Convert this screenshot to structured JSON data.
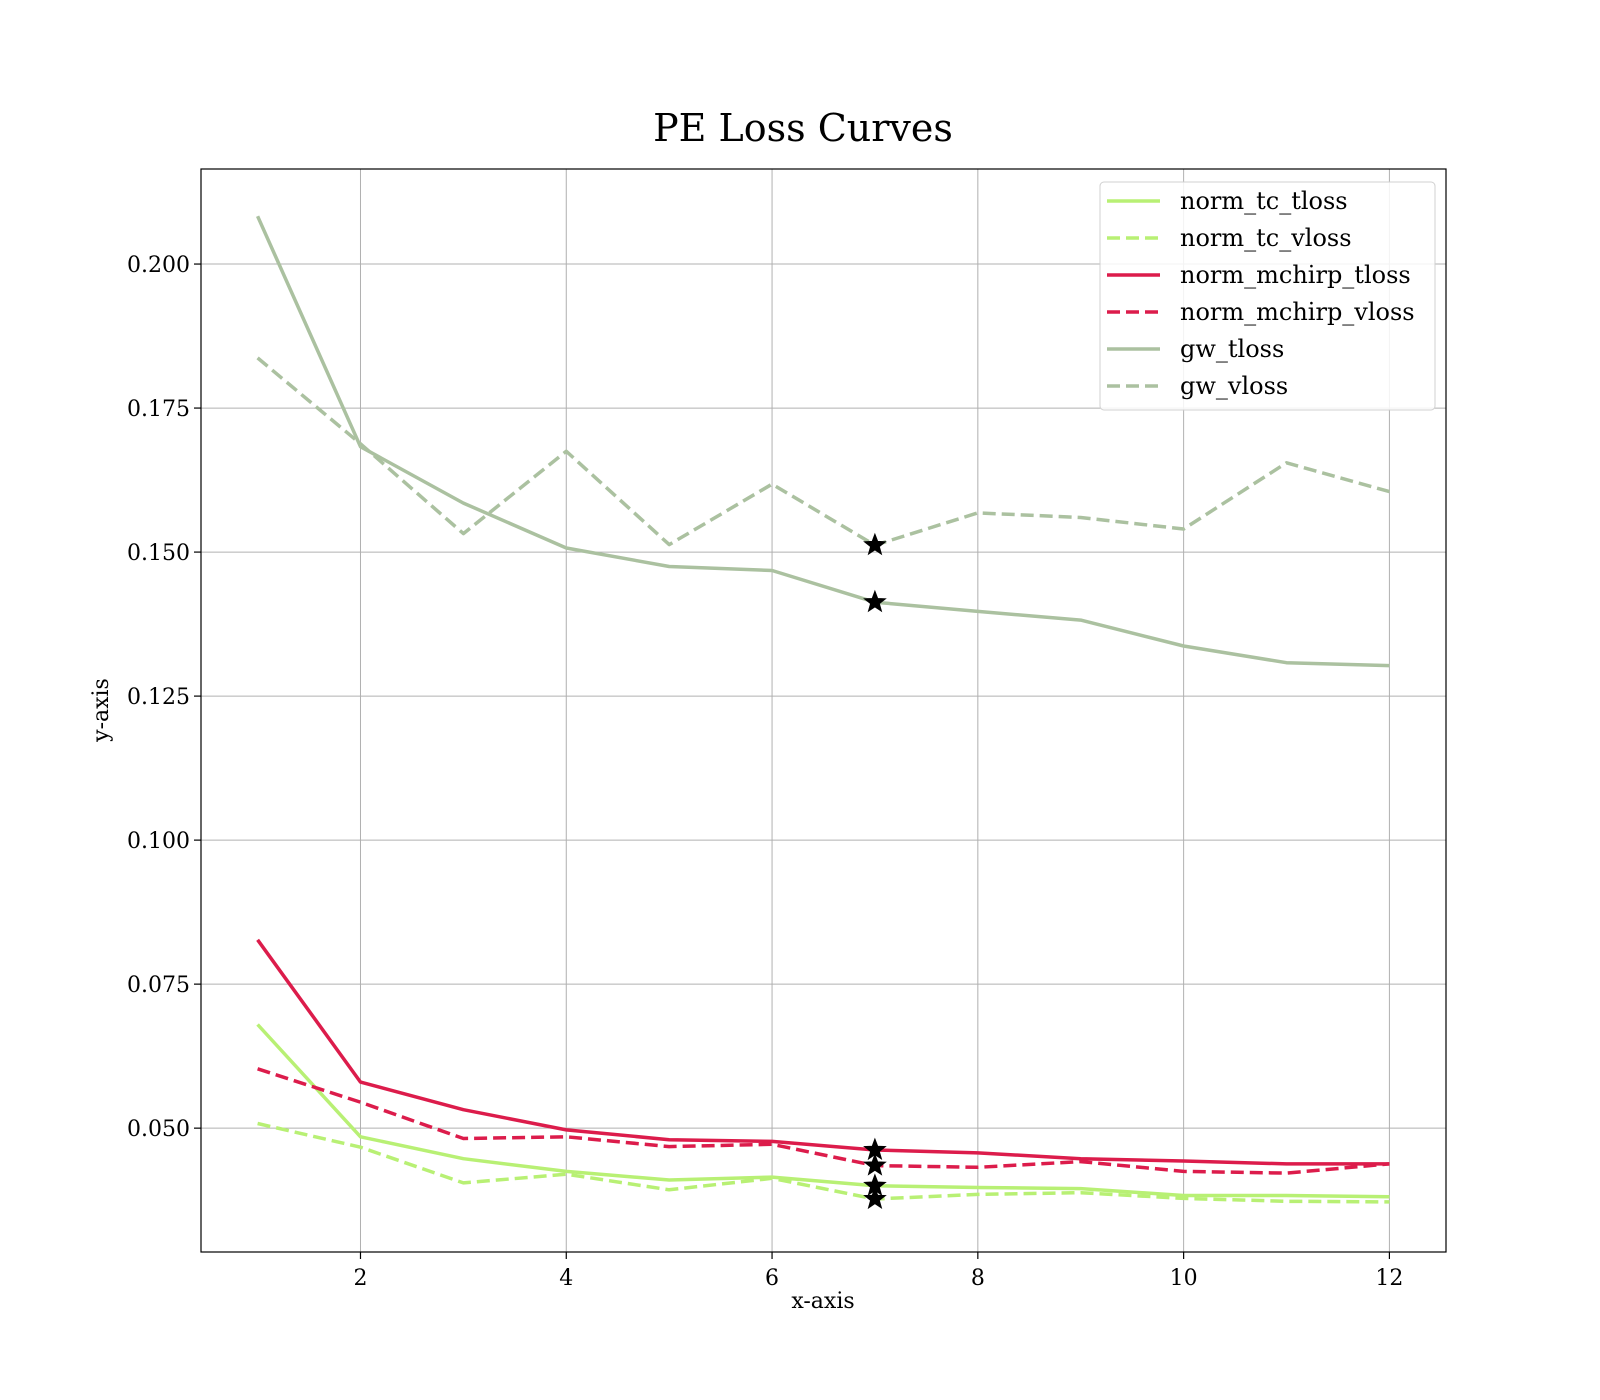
{
  "chart_data": {
    "type": "line",
    "title": "PE Loss Curves",
    "xlabel": "x-axis",
    "ylabel": "y-axis",
    "xlim": [
      0.45,
      12.55
    ],
    "ylim": [
      0.0285,
      0.2165
    ],
    "xticks": [
      2,
      4,
      6,
      8,
      10,
      12
    ],
    "xtick_labels": [
      "2",
      "4",
      "6",
      "8",
      "10",
      "12"
    ],
    "yticks": [
      0.05,
      0.075,
      0.1,
      0.125,
      0.15,
      0.175,
      0.2
    ],
    "ytick_labels": [
      "0.050",
      "0.075",
      "0.100",
      "0.125",
      "0.150",
      "0.175",
      "0.200"
    ],
    "grid": true,
    "legend_position": "top-right",
    "x": [
      1,
      2,
      3,
      4,
      5,
      6,
      7,
      8,
      9,
      10,
      11,
      12
    ],
    "series": [
      {
        "name": "norm_tc_tloss",
        "color": "#b8f074",
        "style": "solid",
        "values": [
          0.068,
          0.0485,
          0.0447,
          0.0425,
          0.041,
          0.0415,
          0.04,
          0.0397,
          0.0395,
          0.0383,
          0.0383,
          0.0381
        ],
        "best_marker": {
          "x": 7,
          "y": 0.04
        }
      },
      {
        "name": "norm_tc_vloss",
        "color": "#b8f074",
        "style": "dashed",
        "values": [
          0.0508,
          0.0467,
          0.0405,
          0.042,
          0.0393,
          0.0413,
          0.0377,
          0.0385,
          0.0388,
          0.0378,
          0.0373,
          0.0372
        ],
        "best_marker": {
          "x": 7,
          "y": 0.0377
        }
      },
      {
        "name": "norm_mchirp_tloss",
        "color": "#dc1c4b",
        "style": "solid",
        "values": [
          0.0827,
          0.058,
          0.0532,
          0.0497,
          0.048,
          0.0477,
          0.0462,
          0.0457,
          0.0447,
          0.0443,
          0.0438,
          0.0438
        ],
        "best_marker": {
          "x": 7,
          "y": 0.0462
        }
      },
      {
        "name": "norm_mchirp_vloss",
        "color": "#dc1c4b",
        "style": "dashed",
        "values": [
          0.0603,
          0.0545,
          0.0482,
          0.0485,
          0.0468,
          0.0472,
          0.0435,
          0.0432,
          0.0442,
          0.0425,
          0.0422,
          0.0438
        ],
        "best_marker": {
          "x": 7,
          "y": 0.0435
        }
      },
      {
        "name": "gw_tloss",
        "color": "#abc1a0",
        "style": "solid",
        "values": [
          0.2083,
          0.1683,
          0.1585,
          0.1507,
          0.1475,
          0.1468,
          0.1413,
          0.1397,
          0.1382,
          0.1337,
          0.1308,
          0.1303
        ],
        "best_marker": {
          "x": 7,
          "y": 0.1413
        }
      },
      {
        "name": "gw_vloss",
        "color": "#abc1a0",
        "style": "dashed",
        "values": [
          0.1837,
          0.1688,
          0.1532,
          0.1675,
          0.1513,
          0.1618,
          0.1512,
          0.1568,
          0.156,
          0.154,
          0.1655,
          0.1605
        ],
        "best_marker": {
          "x": 7,
          "y": 0.1512
        }
      }
    ]
  }
}
